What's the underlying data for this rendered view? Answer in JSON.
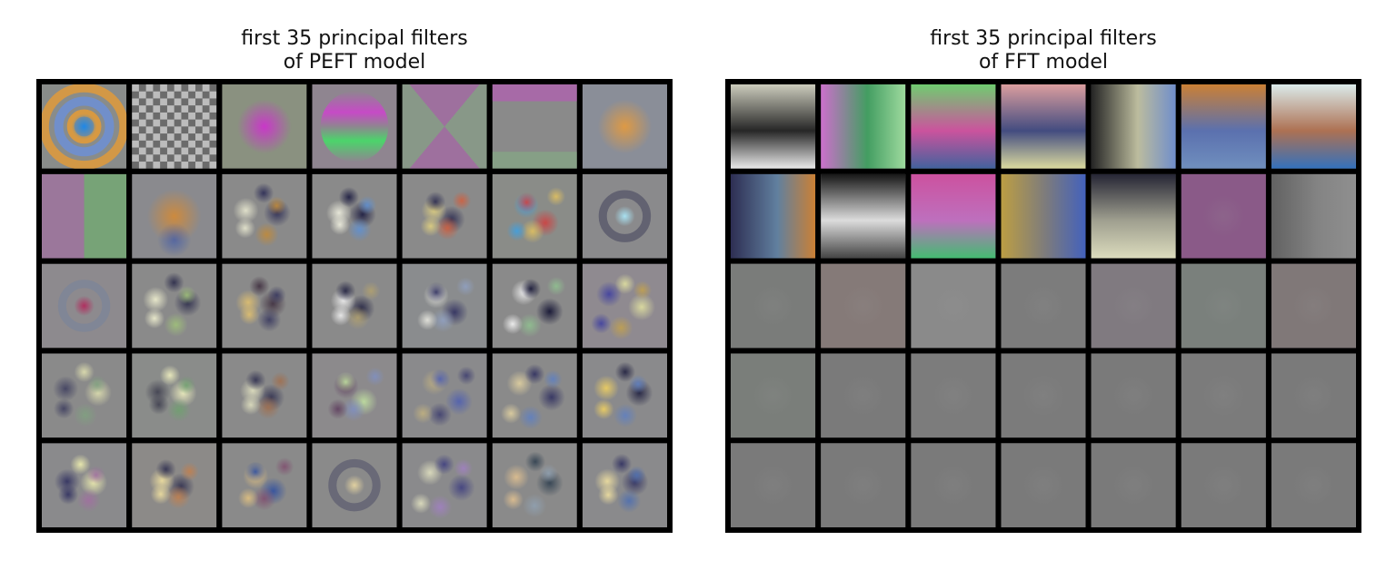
{
  "panels": [
    {
      "title_line1": "first 35 principal filters",
      "title_line2": "of PEFT model",
      "grid": {
        "rows": 5,
        "cols": 7
      },
      "filters": [
        {
          "bg": "#898c8a",
          "kind": "rings",
          "colors": [
            "#e09a3a",
            "#6f8fd0",
            "#1e88e8"
          ]
        },
        {
          "bg": "#8c8c8c",
          "kind": "checker",
          "colors": [
            "#d0d0d0",
            "#555555"
          ]
        },
        {
          "bg": "#8a9180",
          "kind": "blob",
          "colors": [
            "#cc33cc"
          ]
        },
        {
          "bg": "#8f8590",
          "kind": "bands",
          "colors": [
            "#cc44cc",
            "#44dd66"
          ]
        },
        {
          "bg": "#889888",
          "kind": "hourglass",
          "colors": [
            "#b050b0"
          ]
        },
        {
          "bg": "#8a8a8a",
          "kind": "edge",
          "colors": [
            "#c050c0",
            "#7fbf7f"
          ]
        },
        {
          "bg": "#8a8e98",
          "kind": "blob",
          "colors": [
            "#e29a40"
          ]
        },
        {
          "bg": "#8a8a8a",
          "kind": "halves",
          "colors": [
            "#b060b0",
            "#60c060"
          ]
        },
        {
          "bg": "#8a8a8e",
          "kind": "blob",
          "colors": [
            "#d08a3a",
            "#3050b0"
          ]
        },
        {
          "bg": "#8a8a8a",
          "kind": "spots",
          "colors": [
            "#2b2b55",
            "#e8e8d0",
            "#c08a3a"
          ]
        },
        {
          "bg": "#8a8a8a",
          "kind": "spots",
          "colors": [
            "#1b1b40",
            "#f0f0e0",
            "#6090d0"
          ]
        },
        {
          "bg": "#8a8a8a",
          "kind": "spots",
          "colors": [
            "#2a2a50",
            "#e0d080",
            "#d06040"
          ]
        },
        {
          "bg": "#8a8c88",
          "kind": "spots",
          "colors": [
            "#d04040",
            "#40a0e0",
            "#e0c060"
          ]
        },
        {
          "bg": "#8a8a8c",
          "kind": "ring",
          "colors": [
            "#a8e0f0",
            "#303050"
          ]
        },
        {
          "bg": "#8d8a8e",
          "kind": "ring",
          "colors": [
            "#b03060",
            "#7080a0"
          ]
        },
        {
          "bg": "#8a8a8a",
          "kind": "spots",
          "colors": [
            "#2a2a4a",
            "#f0f0d0",
            "#9fc07a"
          ]
        },
        {
          "bg": "#8a8a8a",
          "kind": "spots",
          "colors": [
            "#403040",
            "#e0c070",
            "#3a3a60"
          ]
        },
        {
          "bg": "#8a8a8a",
          "kind": "spots",
          "colors": [
            "#202040",
            "#f0f0f0",
            "#b0a070"
          ]
        },
        {
          "bg": "#8a8c8e",
          "kind": "spots",
          "colors": [
            "#303060",
            "#e8e8e0",
            "#90a0c0"
          ]
        },
        {
          "bg": "#8a8a8a",
          "kind": "spots",
          "colors": [
            "#101030",
            "#f5f5f5",
            "#90c090"
          ]
        },
        {
          "bg": "#8f8a90",
          "kind": "spots",
          "colors": [
            "#e0e0a0",
            "#4040a0",
            "#c0a050"
          ]
        },
        {
          "bg": "#8a8a8a",
          "kind": "spots",
          "colors": [
            "#e0e0b0",
            "#404060",
            "#80a080"
          ]
        },
        {
          "bg": "#8a8c8a",
          "kind": "spots",
          "colors": [
            "#f0f0c0",
            "#404050",
            "#70a070"
          ]
        },
        {
          "bg": "#8a8a8a",
          "kind": "spots",
          "colors": [
            "#303050",
            "#e0e0c0",
            "#a07050"
          ]
        },
        {
          "bg": "#8c8a8c",
          "kind": "spots",
          "colors": [
            "#c0e0a0",
            "#604060",
            "#8090c0"
          ]
        },
        {
          "bg": "#8a8a8c",
          "kind": "spots",
          "colors": [
            "#5060b0",
            "#c0b080",
            "#404070"
          ]
        },
        {
          "bg": "#8a8a8a",
          "kind": "spots",
          "colors": [
            "#303060",
            "#e0d0a0",
            "#6080c0"
          ]
        },
        {
          "bg": "#8a8a8c",
          "kind": "spots",
          "colors": [
            "#202040",
            "#f0d060",
            "#6080c0"
          ]
        },
        {
          "bg": "#8a8a8c",
          "kind": "spots",
          "colors": [
            "#f0f0b0",
            "#303060",
            "#a070a0"
          ]
        },
        {
          "bg": "#8c8a88",
          "kind": "spots",
          "colors": [
            "#303050",
            "#f0e0a0",
            "#c08050"
          ]
        },
        {
          "bg": "#8a8a8a",
          "kind": "spots",
          "colors": [
            "#3050a0",
            "#e0c080",
            "#805070"
          ]
        },
        {
          "bg": "#8a8a8a",
          "kind": "ring",
          "colors": [
            "#e0d0a0",
            "#404060"
          ]
        },
        {
          "bg": "#8a8a8c",
          "kind": "spots",
          "colors": [
            "#404080",
            "#e0e0c0",
            "#a080c0"
          ]
        },
        {
          "bg": "#8a8a8a",
          "kind": "spots",
          "colors": [
            "#304050",
            "#e0c090",
            "#90a0b0"
          ]
        },
        {
          "bg": "#8a8a8c",
          "kind": "spots",
          "colors": [
            "#303060",
            "#f0e0a0",
            "#5070b0"
          ]
        }
      ]
    },
    {
      "title_line1": "first 35 principal filters",
      "title_line2": "of FFT model",
      "grid": {
        "rows": 5,
        "cols": 7
      },
      "filters": [
        {
          "bg": "#7a7a7a",
          "kind": "gradient",
          "colors": [
            "#d0d0c0",
            "#222222",
            "#f0f0f0"
          ]
        },
        {
          "bg": "#7a6a7a",
          "kind": "gradient",
          "colors": [
            "#d070d0",
            "#40a060",
            "#a0e0a0"
          ]
        },
        {
          "bg": "#6a8a6a",
          "kind": "gradient",
          "colors": [
            "#70d070",
            "#d050a0",
            "#4060a0"
          ]
        },
        {
          "bg": "#7a7080",
          "kind": "gradient",
          "colors": [
            "#e0a0a0",
            "#404a80",
            "#e0e0a0"
          ]
        },
        {
          "bg": "#707070",
          "kind": "gradient",
          "colors": [
            "#202020",
            "#c0c0a0",
            "#7090d0"
          ]
        },
        {
          "bg": "#6a7a90",
          "kind": "gradient",
          "colors": [
            "#d08030",
            "#5a70b0",
            "#7090c0"
          ]
        },
        {
          "bg": "#7a8080",
          "kind": "gradient",
          "colors": [
            "#e0f0f0",
            "#b07050",
            "#3070c0"
          ]
        },
        {
          "bg": "#6a7a8a",
          "kind": "gradient",
          "colors": [
            "#2a2a50",
            "#6080a0",
            "#d08030"
          ]
        },
        {
          "bg": "#909090",
          "kind": "gradient",
          "colors": [
            "#101010",
            "#e0e0e0",
            "#404040"
          ]
        },
        {
          "bg": "#8a6a8a",
          "kind": "gradient",
          "colors": [
            "#d050a0",
            "#c070c0",
            "#40c070"
          ]
        },
        {
          "bg": "#7a7a70",
          "kind": "gradient",
          "colors": [
            "#c0a040",
            "#7a7a80",
            "#4060c0"
          ]
        },
        {
          "bg": "#8a8a80",
          "kind": "gradient",
          "colors": [
            "#202030",
            "#a0a090",
            "#e0e0c0"
          ]
        },
        {
          "bg": "#8a6a8a",
          "kind": "flat",
          "colors": [
            "#8a5a88"
          ]
        },
        {
          "bg": "#808080",
          "kind": "gradient",
          "colors": [
            "#606060",
            "#848484",
            "#909090"
          ]
        },
        {
          "bg": "#7a7a7a",
          "kind": "flat",
          "colors": [
            "#7a7c7a"
          ]
        },
        {
          "bg": "#857a78",
          "kind": "flat",
          "colors": [
            "#857a78"
          ]
        },
        {
          "bg": "#7c7c7c",
          "kind": "flat",
          "colors": [
            "#8a8a8a"
          ]
        },
        {
          "bg": "#7c7c7c",
          "kind": "flat",
          "colors": [
            "#7c7c7c"
          ]
        },
        {
          "bg": "#7a787c",
          "kind": "flat",
          "colors": [
            "#807a80"
          ]
        },
        {
          "bg": "#7a807a",
          "kind": "flat",
          "colors": [
            "#7a807c"
          ]
        },
        {
          "bg": "#7a7880",
          "kind": "flat",
          "colors": [
            "#807878"
          ]
        },
        {
          "bg": "#787c7a",
          "kind": "flat",
          "colors": [
            "#7a7e7a"
          ]
        },
        {
          "bg": "#7a7a7a",
          "kind": "flat",
          "colors": [
            "#7a7a7a"
          ]
        },
        {
          "bg": "#7a7a7a",
          "kind": "flat",
          "colors": [
            "#7c7c7c"
          ]
        },
        {
          "bg": "#7a7a7a",
          "kind": "flat",
          "colors": [
            "#7b7b7b"
          ]
        },
        {
          "bg": "#7a7a7a",
          "kind": "flat",
          "colors": [
            "#7a7a7a"
          ]
        },
        {
          "bg": "#7a7a7a",
          "kind": "flat",
          "colors": [
            "#7b7b7b"
          ]
        },
        {
          "bg": "#7a7a7a",
          "kind": "flat",
          "colors": [
            "#7a7a7a"
          ]
        },
        {
          "bg": "#7a7a7a",
          "kind": "flat",
          "colors": [
            "#7a7a7a"
          ]
        },
        {
          "bg": "#7a7a7a",
          "kind": "flat",
          "colors": [
            "#7a7a7a"
          ]
        },
        {
          "bg": "#7a7a7a",
          "kind": "flat",
          "colors": [
            "#7a7a7a"
          ]
        },
        {
          "bg": "#7a7a7a",
          "kind": "flat",
          "colors": [
            "#7a7a7a"
          ]
        },
        {
          "bg": "#7a7a7a",
          "kind": "flat",
          "colors": [
            "#7a7a7a"
          ]
        },
        {
          "bg": "#7a7a7a",
          "kind": "flat",
          "colors": [
            "#7a7a7a"
          ]
        },
        {
          "bg": "#7a7a7a",
          "kind": "flat",
          "colors": [
            "#7a7a7a"
          ]
        }
      ]
    }
  ]
}
